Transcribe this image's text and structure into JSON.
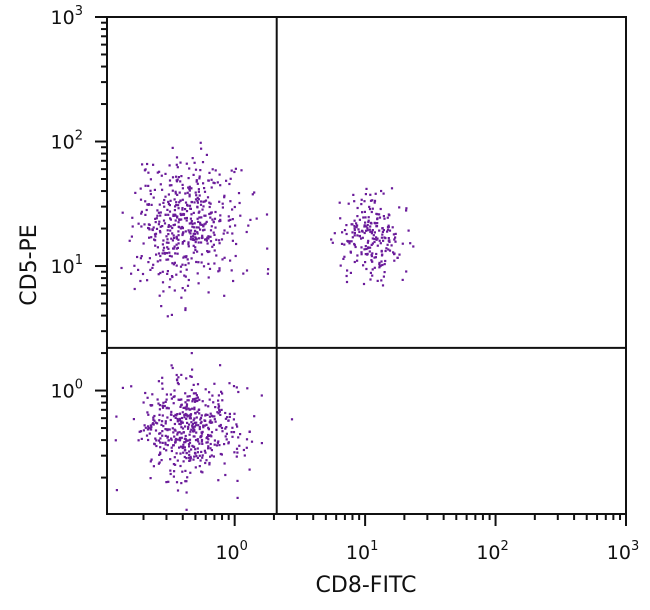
{
  "chart_data": {
    "type": "scatter",
    "title": "",
    "xlabel": "CD8-FITC",
    "ylabel": "CD5-PE",
    "xscale": "log",
    "yscale": "log",
    "xlim": [
      0.105,
      1000
    ],
    "ylim": [
      0.102,
      1000
    ],
    "x_ticks": [
      {
        "base": "10",
        "exp": "0",
        "value": 1
      },
      {
        "base": "10",
        "exp": "1",
        "value": 10
      },
      {
        "base": "10",
        "exp": "2",
        "value": 100
      },
      {
        "base": "10",
        "exp": "3",
        "value": 1000
      }
    ],
    "y_ticks": [
      {
        "base": "10",
        "exp": "0",
        "value": 1
      },
      {
        "base": "10",
        "exp": "1",
        "value": 10
      },
      {
        "base": "10",
        "exp": "2",
        "value": 100
      },
      {
        "base": "10",
        "exp": "3",
        "value": 1000
      }
    ],
    "grid": false,
    "legend": null,
    "point_color": "#6a1b9a",
    "quadrant_gates": {
      "x": 2.1,
      "y": 2.2
    },
    "populations": [
      {
        "name": "CD8- CD5+ (upper left)",
        "center_x": 0.42,
        "center_y": 22,
        "spread_log_x": 0.2,
        "spread_log_y": 0.26,
        "count": 520
      },
      {
        "name": "CD8+ CD5+ (upper right)",
        "center_x": 11,
        "center_y": 17,
        "spread_log_x": 0.13,
        "spread_log_y": 0.17,
        "count": 230
      },
      {
        "name": "CD8- CD5- (lower left)",
        "center_x": 0.45,
        "center_y": 0.5,
        "spread_log_x": 0.2,
        "spread_log_y": 0.2,
        "count": 520
      },
      {
        "name": "CD8+ CD5- (lower right)",
        "center_x": 2.7,
        "center_y": 0.6,
        "spread_log_x": 0.0,
        "spread_log_y": 0.0,
        "count": 1
      }
    ],
    "seed": 7
  }
}
